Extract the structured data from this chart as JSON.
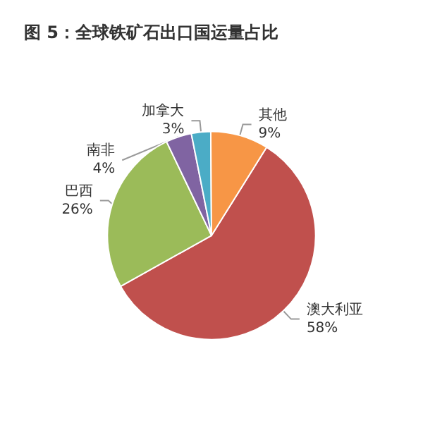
{
  "chart_data": {
    "type": "pie",
    "title": "图 5：全球铁矿石出口国运量占比",
    "categories": [
      "澳大利亚",
      "巴西",
      "南非",
      "加拿大",
      "其他"
    ],
    "values": [
      58,
      26,
      4,
      3,
      9
    ],
    "value_labels": [
      "58%",
      "26%",
      "4%",
      "3%",
      "9%"
    ],
    "colors": [
      "#c0504d",
      "#9bbb59",
      "#8064a2",
      "#4bacc6",
      "#f79646"
    ],
    "legend": false
  }
}
